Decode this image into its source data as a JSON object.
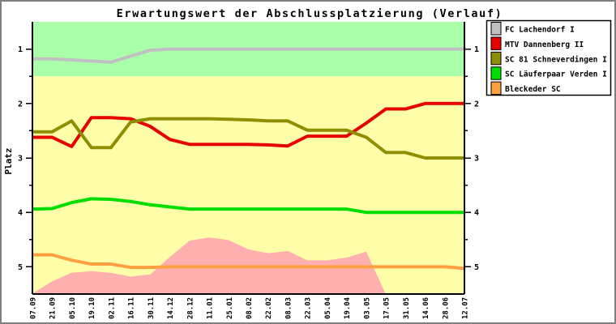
{
  "window": {
    "background": "#ffffff",
    "border_color": "#808080"
  },
  "chart_data": {
    "type": "line",
    "title": "Erwartungswert der Abschlussplatzierung (Verlauf)",
    "ylabel": "Platz",
    "ylim": [
      0.5,
      5.5
    ],
    "y_inverted": true,
    "y_major_ticks": [
      1,
      2,
      3,
      4,
      5
    ],
    "y_minor_ticks": [
      1.5,
      2.5,
      3.5,
      4.5
    ],
    "y_axis_both_sides": true,
    "grid": false,
    "legend_position": "top-right-outside",
    "x_labels": [
      "07.09",
      "21.09",
      "05.10",
      "19.10",
      "02.11",
      "16.11",
      "30.11",
      "14.12",
      "28.12",
      "11.01",
      "25.01",
      "08.02",
      "22.02",
      "08.03",
      "22.03",
      "05.04",
      "19.04",
      "03.05",
      "17.05",
      "31.05",
      "14.06",
      "28.06",
      "12.07"
    ],
    "zones": [
      {
        "name": "promotion-zone",
        "from": 0.5,
        "to": 1.5,
        "color": "#aaffaa"
      },
      {
        "name": "midfield-zone",
        "from": 1.5,
        "to": 5.5,
        "color": "#ffffaa"
      }
    ],
    "danger_area": {
      "name": "relegation-risk-area",
      "color": "#ffafaf",
      "points": [
        [
          0,
          5.49
        ],
        [
          1,
          5.27
        ],
        [
          2,
          5.11
        ],
        [
          3,
          5.08
        ],
        [
          4,
          5.11
        ],
        [
          5,
          5.18
        ],
        [
          6,
          5.14
        ],
        [
          7,
          4.82
        ],
        [
          8,
          4.52
        ],
        [
          9,
          4.46
        ],
        [
          10,
          4.51
        ],
        [
          11,
          4.68
        ],
        [
          12,
          4.75
        ],
        [
          13,
          4.71
        ],
        [
          14,
          4.88
        ],
        [
          15,
          4.88
        ],
        [
          16,
          4.83
        ],
        [
          17,
          4.72
        ],
        [
          18.05,
          5.55
        ]
      ]
    },
    "series": [
      {
        "name": "FC Lachendorf I",
        "color": "#c0c0c0",
        "values": [
          1.18,
          1.18,
          1.2,
          1.22,
          1.24,
          1.13,
          1.02,
          1.0,
          1.0,
          1.0,
          1.0,
          1.0,
          1.0,
          1.0,
          1.0,
          1.0,
          1.0,
          1.0,
          1.0,
          1.0,
          1.0,
          1.0,
          1.0
        ]
      },
      {
        "name": "MTV Dannenberg II",
        "color": "#e60000",
        "values": [
          2.62,
          2.62,
          2.79,
          2.26,
          2.26,
          2.28,
          2.42,
          2.66,
          2.75,
          2.75,
          2.75,
          2.75,
          2.76,
          2.78,
          2.6,
          2.6,
          2.6,
          2.36,
          2.1,
          2.1,
          2.0,
          2.0,
          2.0
        ]
      },
      {
        "name": "SC 81 Schneverdingen I",
        "color": "#8e8e00",
        "values": [
          2.52,
          2.52,
          2.32,
          2.81,
          2.81,
          2.34,
          2.28,
          2.28,
          2.28,
          2.28,
          2.29,
          2.3,
          2.32,
          2.32,
          2.49,
          2.49,
          2.49,
          2.62,
          2.9,
          2.9,
          3.0,
          3.0,
          3.0
        ]
      },
      {
        "name": "SC Läuferpaar Verden I",
        "color": "#00dd00",
        "values": [
          3.94,
          3.93,
          3.82,
          3.75,
          3.76,
          3.8,
          3.86,
          3.9,
          3.94,
          3.94,
          3.94,
          3.94,
          3.94,
          3.94,
          3.94,
          3.94,
          3.94,
          4.0,
          4.0,
          4.0,
          4.0,
          4.0,
          4.0
        ]
      },
      {
        "name": "Bleckeder SC",
        "color": "#ffa040",
        "values": [
          4.78,
          4.78,
          4.88,
          4.95,
          4.95,
          5.01,
          5.01,
          5.0,
          5.0,
          5.0,
          5.0,
          5.0,
          5.0,
          5.0,
          5.0,
          5.0,
          5.0,
          5.0,
          5.0,
          5.0,
          5.0,
          5.0,
          5.03
        ]
      }
    ]
  }
}
